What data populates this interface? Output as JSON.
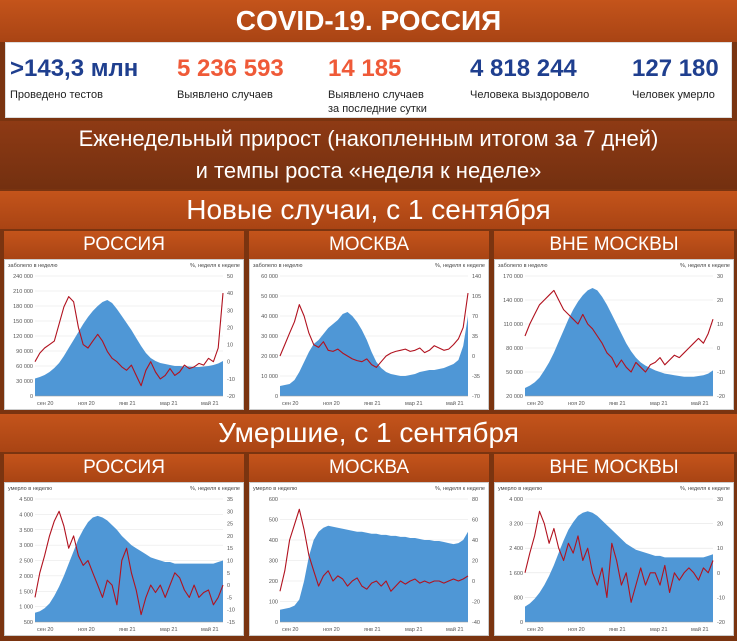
{
  "header": {
    "title": "COVID-19. РОССИЯ"
  },
  "stats": [
    {
      "value": ">143,3 млн",
      "label": "Проведено тестов",
      "color": "#1f3f8f"
    },
    {
      "value": "5 236 593",
      "label": "Выявлено случаев",
      "color": "#ef5a38"
    },
    {
      "value": "14 185",
      "label": "Выявлено случаев\nза последние сутки",
      "color": "#ef5a38"
    },
    {
      "value": "4 818 244",
      "label": "Человека выздоровело",
      "color": "#1f3f8f"
    },
    {
      "value": "127 180",
      "label": "Человек умерло",
      "color": "#1f3f8f"
    }
  ],
  "weekly_title": {
    "line1": "Еженедельный прирост (накопленным итогом за 7 дней)",
    "line2": "и темпы роста «неделя к неделе»"
  },
  "sections": {
    "new_cases": "Новые случаи, с 1 сентября",
    "deaths": "Умершие, с 1 сентября"
  },
  "regions": [
    "РОССИЯ",
    "МОСКВА",
    "ВНЕ МОСКВЫ"
  ],
  "colors": {
    "area": "#4f97d6",
    "line": "#b1121f",
    "band": "#b24a17",
    "bg": "#7a3410"
  },
  "chart_data": [
    {
      "type": "area",
      "region": "РОССИЯ",
      "section": "Новые случаи",
      "left_label": "заболело в неделю",
      "right_label": "%, неделя к неделе",
      "x_ticks": [
        "сен 20",
        "ноя 20",
        "янв 21",
        "мар 21",
        "май 21"
      ],
      "left_ticks": [
        "240 000",
        "210 000",
        "180 000",
        "150 000",
        "120 000",
        "90 000",
        "60 000",
        "30 000",
        "0"
      ],
      "right_ticks": [
        "50",
        "40",
        "30",
        "20",
        "10",
        "0",
        "-10",
        "-20"
      ],
      "ylim_left": [
        0,
        240000
      ],
      "ylim_right": [
        -20,
        50
      ],
      "series": [
        {
          "values": [
            35000,
            38000,
            42000,
            48000,
            56000,
            66000,
            80000,
            96000,
            112000,
            128000,
            144000,
            158000,
            170000,
            180000,
            188000,
            192000,
            186000,
            174000,
            160000,
            146000,
            132000,
            116000,
            100000,
            86000,
            76000,
            70000,
            66000,
            64000,
            62000,
            60000,
            60000,
            59000,
            59000,
            58000,
            58000,
            59000,
            60000,
            62000,
            65000,
            70000
          ]
        },
        {
          "values": [
            0,
            5,
            8,
            10,
            12,
            22,
            32,
            38,
            35,
            20,
            10,
            8,
            12,
            16,
            12,
            6,
            2,
            0,
            -3,
            -5,
            -2,
            -8,
            -14,
            -5,
            0,
            -6,
            -10,
            -8,
            -4,
            -8,
            -6,
            -2,
            -4,
            -3,
            -1,
            -2,
            2,
            0,
            8,
            40
          ]
        }
      ]
    },
    {
      "type": "area",
      "region": "МОСКВА",
      "section": "Новые случаи",
      "left_label": "заболело в неделю",
      "right_label": "%, неделя к неделе",
      "x_ticks": [
        "сен 20",
        "ноя 20",
        "янв 21",
        "мар 21",
        "май 21"
      ],
      "left_ticks": [
        "60 000",
        "50 000",
        "40 000",
        "30 000",
        "20 000",
        "10 000",
        "0"
      ],
      "right_ticks": [
        "140",
        "105",
        "70",
        "35",
        "0",
        "-35",
        "-70"
      ],
      "ylim_left": [
        0,
        60000
      ],
      "ylim_right": [
        -70,
        140
      ],
      "series": [
        {
          "values": [
            5000,
            5500,
            6000,
            8000,
            12000,
            17000,
            22000,
            26000,
            28000,
            31000,
            34000,
            36000,
            38000,
            41000,
            42000,
            40000,
            37000,
            33000,
            28000,
            22000,
            17000,
            14000,
            12000,
            11000,
            10500,
            10000,
            10000,
            10500,
            11000,
            12000,
            12500,
            13000,
            13000,
            13500,
            14000,
            15000,
            16000,
            18000,
            25000,
            40000
          ]
        },
        {
          "values": [
            0,
            20,
            40,
            60,
            90,
            70,
            40,
            20,
            15,
            25,
            10,
            8,
            12,
            5,
            0,
            -5,
            -8,
            -10,
            -5,
            -15,
            -20,
            -10,
            0,
            5,
            8,
            10,
            12,
            8,
            10,
            14,
            6,
            10,
            18,
            14,
            10,
            12,
            20,
            30,
            50,
            110
          ]
        }
      ]
    },
    {
      "type": "area",
      "region": "ВНЕ МОСКВЫ",
      "section": "Новые случаи",
      "left_label": "заболело в неделю",
      "right_label": "%, неделя к неделе",
      "x_ticks": [
        "сен 20",
        "ноя 20",
        "янв 21",
        "мар 21",
        "май 21"
      ],
      "left_ticks": [
        "170 000",
        "140 000",
        "110 000",
        "80 000",
        "50 000",
        "20 000"
      ],
      "right_ticks": [
        "30",
        "20",
        "10",
        "0",
        "-10",
        "-20"
      ],
      "ylim_left": [
        20000,
        170000
      ],
      "ylim_right": [
        -20,
        30
      ],
      "series": [
        {
          "values": [
            30000,
            33000,
            37000,
            43000,
            52000,
            62000,
            74000,
            88000,
            102000,
            116000,
            128000,
            138000,
            146000,
            152000,
            155000,
            152000,
            144000,
            134000,
            122000,
            110000,
            98000,
            86000,
            76000,
            68000,
            62000,
            58000,
            55000,
            52000,
            50000,
            48000,
            47000,
            46000,
            45000,
            44000,
            44000,
            44000,
            45000,
            46000,
            48000,
            52000
          ]
        },
        {
          "values": [
            5,
            10,
            14,
            18,
            20,
            22,
            24,
            20,
            16,
            14,
            12,
            10,
            14,
            10,
            8,
            5,
            2,
            -2,
            -4,
            -8,
            -5,
            -8,
            -10,
            -6,
            -8,
            -10,
            -7,
            -6,
            -4,
            -7,
            -5,
            -3,
            -4,
            -2,
            0,
            2,
            4,
            2,
            6,
            12
          ]
        }
      ]
    },
    {
      "type": "area",
      "region": "РОССИЯ",
      "section": "Умершие",
      "left_label": "умерло в неделю",
      "right_label": "%, неделя к неделе",
      "x_ticks": [
        "сен 20",
        "ноя 20",
        "янв 21",
        "мар 21",
        "май 21"
      ],
      "left_ticks": [
        "4 500",
        "4 000",
        "3 500",
        "3 000",
        "2 500",
        "2 000",
        "1 500",
        "1 000",
        "500"
      ],
      "right_ticks": [
        "35",
        "30",
        "25",
        "20",
        "15",
        "10",
        "5",
        "0",
        "-5",
        "-10",
        "-15"
      ],
      "ylim_left": [
        500,
        4500
      ],
      "ylim_right": [
        -15,
        35
      ],
      "series": [
        {
          "values": [
            800,
            850,
            950,
            1100,
            1350,
            1650,
            2000,
            2400,
            2800,
            3200,
            3500,
            3750,
            3900,
            3950,
            3900,
            3800,
            3650,
            3500,
            3300,
            3150,
            3000,
            2900,
            2800,
            2700,
            2600,
            2550,
            2500,
            2450,
            2450,
            2400,
            2400,
            2400,
            2400,
            2400,
            2400,
            2400,
            2400,
            2400,
            2450,
            2500
          ]
        },
        {
          "values": [
            -5,
            5,
            12,
            20,
            26,
            30,
            24,
            15,
            20,
            12,
            8,
            10,
            5,
            0,
            -5,
            2,
            0,
            -8,
            10,
            15,
            5,
            -2,
            -12,
            -5,
            0,
            -3,
            0,
            -5,
            0,
            5,
            3,
            -2,
            -5,
            0,
            -5,
            -3,
            -2,
            -8,
            -5,
            0
          ]
        }
      ]
    },
    {
      "type": "area",
      "region": "МОСКВА",
      "section": "Умершие",
      "left_label": "умерло в неделю",
      "right_label": "%, неделя к неделе",
      "x_ticks": [
        "сен 20",
        "ноя 20",
        "янв 21",
        "мар 21",
        "май 21"
      ],
      "left_ticks": [
        "600",
        "500",
        "400",
        "300",
        "200",
        "100",
        "0"
      ],
      "right_ticks": [
        "80",
        "60",
        "40",
        "20",
        "0",
        "-20",
        "-40"
      ],
      "ylim_left": [
        0,
        600
      ],
      "ylim_right": [
        -40,
        80
      ],
      "series": [
        {
          "values": [
            60,
            65,
            70,
            80,
            110,
            200,
            320,
            400,
            440,
            460,
            470,
            465,
            460,
            455,
            450,
            445,
            440,
            440,
            435,
            430,
            430,
            425,
            425,
            420,
            420,
            415,
            415,
            410,
            410,
            405,
            400,
            400,
            395,
            395,
            390,
            385,
            380,
            385,
            400,
            440
          ]
        },
        {
          "values": [
            -10,
            10,
            40,
            55,
            70,
            50,
            25,
            10,
            -5,
            5,
            10,
            0,
            5,
            2,
            -5,
            0,
            3,
            -5,
            -8,
            -2,
            0,
            -5,
            0,
            -10,
            -5,
            0,
            -3,
            0,
            2,
            -2,
            0,
            -2,
            0,
            0,
            -2,
            0,
            2,
            0,
            2,
            5
          ]
        }
      ]
    },
    {
      "type": "area",
      "region": "ВНЕ МОСКВЫ",
      "section": "Умершие",
      "left_label": "умерло в неделю",
      "right_label": "%, неделя к неделе",
      "x_ticks": [
        "сен 20",
        "ноя 20",
        "янв 21",
        "мар 21",
        "май 21"
      ],
      "left_ticks": [
        "4 000",
        "3 200",
        "2 400",
        "1 600",
        "800",
        "0"
      ],
      "right_ticks": [
        "30",
        "20",
        "10",
        "0",
        "-10",
        "-20"
      ],
      "ylim_left": [
        0,
        4000
      ],
      "ylim_right": [
        -20,
        30
      ],
      "series": [
        {
          "values": [
            500,
            600,
            750,
            950,
            1200,
            1500,
            1850,
            2250,
            2650,
            3000,
            3250,
            3450,
            3550,
            3600,
            3550,
            3450,
            3300,
            3150,
            3000,
            2850,
            2700,
            2550,
            2450,
            2350,
            2300,
            2250,
            2200,
            2150,
            2150,
            2100,
            2100,
            2100,
            2100,
            2100,
            2100,
            2100,
            2100,
            2100,
            2150,
            2200
          ]
        },
        {
          "values": [
            0,
            8,
            15,
            25,
            20,
            12,
            18,
            10,
            5,
            12,
            8,
            15,
            5,
            10,
            0,
            -5,
            2,
            -10,
            12,
            5,
            -5,
            0,
            -12,
            -5,
            2,
            -5,
            0,
            0,
            -5,
            3,
            -8,
            0,
            -3,
            0,
            2,
            0,
            -3,
            2,
            0,
            5
          ]
        }
      ]
    }
  ]
}
